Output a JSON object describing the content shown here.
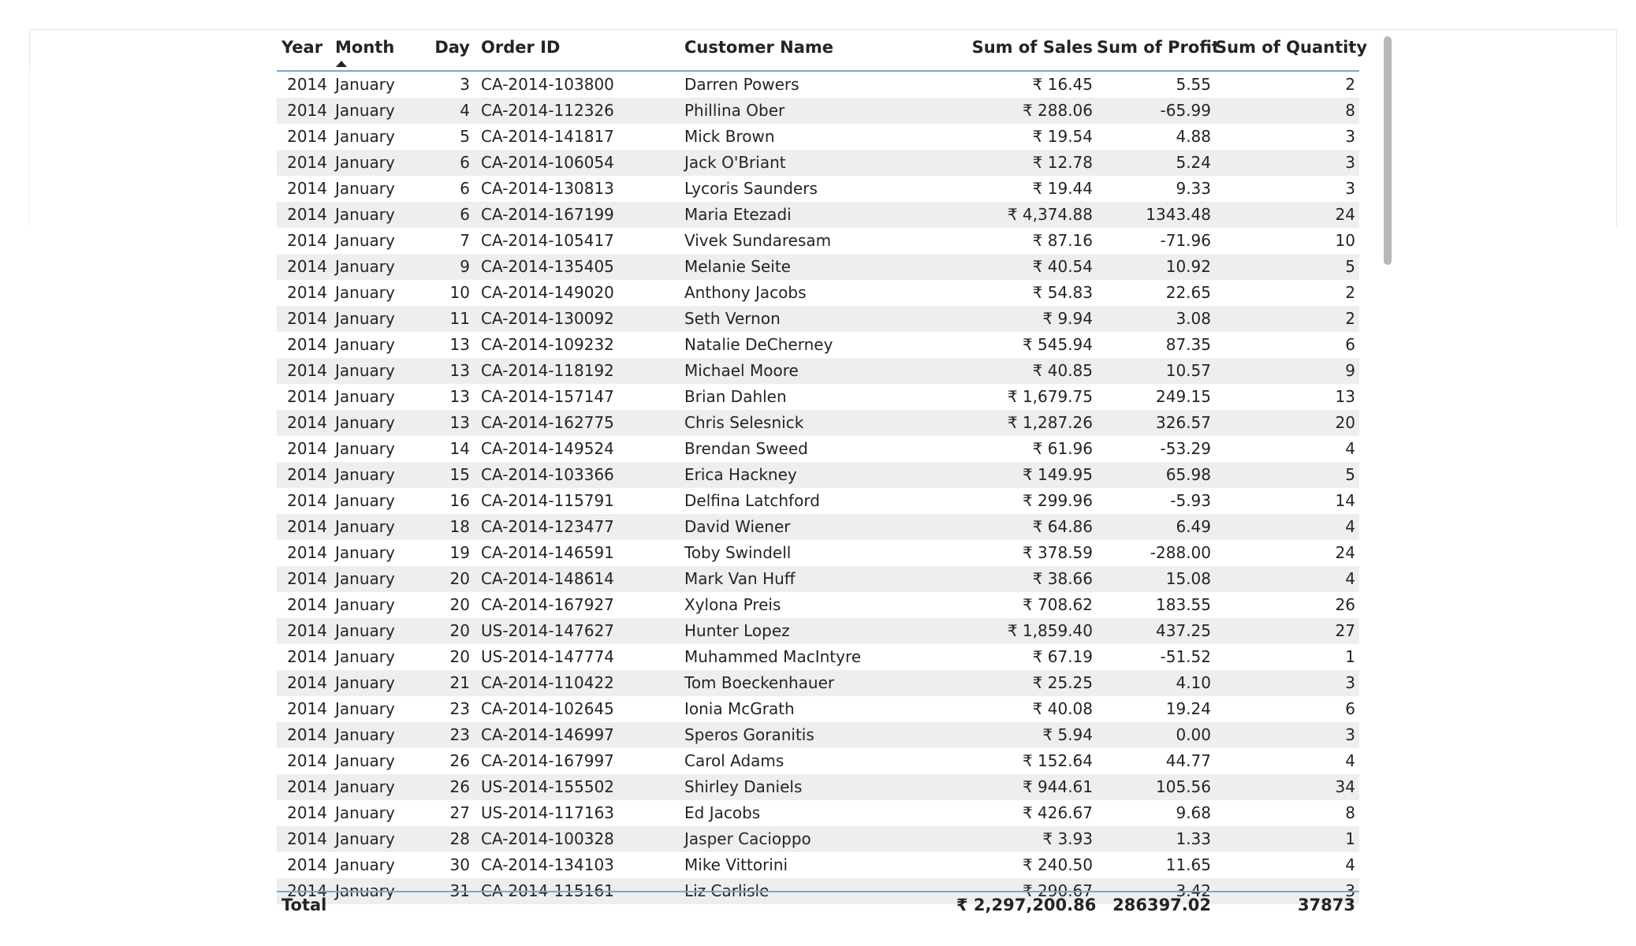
{
  "table": {
    "columns": {
      "year": "Year",
      "month": "Month",
      "day": "Day",
      "order_id": "Order ID",
      "customer_name": "Customer Name",
      "sum_sales": "Sum of Sales",
      "sum_profit": "Sum of Profit",
      "sum_quantity": "Sum of Quantity"
    },
    "sorted_column": "Month",
    "sort_direction": "ascending",
    "rows": [
      {
        "year": "2014",
        "month": "January",
        "day": "3",
        "order_id": "CA-2014-103800",
        "customer": "Darren Powers",
        "sales": "₹ 16.45",
        "profit": "5.55",
        "quantity": "2"
      },
      {
        "year": "2014",
        "month": "January",
        "day": "4",
        "order_id": "CA-2014-112326",
        "customer": "Phillina Ober",
        "sales": "₹ 288.06",
        "profit": "-65.99",
        "quantity": "8"
      },
      {
        "year": "2014",
        "month": "January",
        "day": "5",
        "order_id": "CA-2014-141817",
        "customer": "Mick Brown",
        "sales": "₹ 19.54",
        "profit": "4.88",
        "quantity": "3"
      },
      {
        "year": "2014",
        "month": "January",
        "day": "6",
        "order_id": "CA-2014-106054",
        "customer": "Jack O'Briant",
        "sales": "₹ 12.78",
        "profit": "5.24",
        "quantity": "3"
      },
      {
        "year": "2014",
        "month": "January",
        "day": "6",
        "order_id": "CA-2014-130813",
        "customer": "Lycoris Saunders",
        "sales": "₹ 19.44",
        "profit": "9.33",
        "quantity": "3"
      },
      {
        "year": "2014",
        "month": "January",
        "day": "6",
        "order_id": "CA-2014-167199",
        "customer": "Maria Etezadi",
        "sales": "₹ 4,374.88",
        "profit": "1343.48",
        "quantity": "24"
      },
      {
        "year": "2014",
        "month": "January",
        "day": "7",
        "order_id": "CA-2014-105417",
        "customer": "Vivek Sundaresam",
        "sales": "₹ 87.16",
        "profit": "-71.96",
        "quantity": "10"
      },
      {
        "year": "2014",
        "month": "January",
        "day": "9",
        "order_id": "CA-2014-135405",
        "customer": "Melanie Seite",
        "sales": "₹ 40.54",
        "profit": "10.92",
        "quantity": "5"
      },
      {
        "year": "2014",
        "month": "January",
        "day": "10",
        "order_id": "CA-2014-149020",
        "customer": "Anthony Jacobs",
        "sales": "₹ 54.83",
        "profit": "22.65",
        "quantity": "2"
      },
      {
        "year": "2014",
        "month": "January",
        "day": "11",
        "order_id": "CA-2014-130092",
        "customer": "Seth Vernon",
        "sales": "₹ 9.94",
        "profit": "3.08",
        "quantity": "2"
      },
      {
        "year": "2014",
        "month": "January",
        "day": "13",
        "order_id": "CA-2014-109232",
        "customer": "Natalie DeCherney",
        "sales": "₹ 545.94",
        "profit": "87.35",
        "quantity": "6"
      },
      {
        "year": "2014",
        "month": "January",
        "day": "13",
        "order_id": "CA-2014-118192",
        "customer": "Michael Moore",
        "sales": "₹ 40.85",
        "profit": "10.57",
        "quantity": "9"
      },
      {
        "year": "2014",
        "month": "January",
        "day": "13",
        "order_id": "CA-2014-157147",
        "customer": "Brian Dahlen",
        "sales": "₹ 1,679.75",
        "profit": "249.15",
        "quantity": "13"
      },
      {
        "year": "2014",
        "month": "January",
        "day": "13",
        "order_id": "CA-2014-162775",
        "customer": "Chris Selesnick",
        "sales": "₹ 1,287.26",
        "profit": "326.57",
        "quantity": "20"
      },
      {
        "year": "2014",
        "month": "January",
        "day": "14",
        "order_id": "CA-2014-149524",
        "customer": "Brendan Sweed",
        "sales": "₹ 61.96",
        "profit": "-53.29",
        "quantity": "4"
      },
      {
        "year": "2014",
        "month": "January",
        "day": "15",
        "order_id": "CA-2014-103366",
        "customer": "Erica Hackney",
        "sales": "₹ 149.95",
        "profit": "65.98",
        "quantity": "5"
      },
      {
        "year": "2014",
        "month": "January",
        "day": "16",
        "order_id": "CA-2014-115791",
        "customer": "Delfina Latchford",
        "sales": "₹ 299.96",
        "profit": "-5.93",
        "quantity": "14"
      },
      {
        "year": "2014",
        "month": "January",
        "day": "18",
        "order_id": "CA-2014-123477",
        "customer": "David Wiener",
        "sales": "₹ 64.86",
        "profit": "6.49",
        "quantity": "4"
      },
      {
        "year": "2014",
        "month": "January",
        "day": "19",
        "order_id": "CA-2014-146591",
        "customer": "Toby Swindell",
        "sales": "₹ 378.59",
        "profit": "-288.00",
        "quantity": "24"
      },
      {
        "year": "2014",
        "month": "January",
        "day": "20",
        "order_id": "CA-2014-148614",
        "customer": "Mark Van Huff",
        "sales": "₹ 38.66",
        "profit": "15.08",
        "quantity": "4"
      },
      {
        "year": "2014",
        "month": "January",
        "day": "20",
        "order_id": "CA-2014-167927",
        "customer": "Xylona Preis",
        "sales": "₹ 708.62",
        "profit": "183.55",
        "quantity": "26"
      },
      {
        "year": "2014",
        "month": "January",
        "day": "20",
        "order_id": "US-2014-147627",
        "customer": "Hunter Lopez",
        "sales": "₹ 1,859.40",
        "profit": "437.25",
        "quantity": "27"
      },
      {
        "year": "2014",
        "month": "January",
        "day": "20",
        "order_id": "US-2014-147774",
        "customer": "Muhammed MacIntyre",
        "sales": "₹ 67.19",
        "profit": "-51.52",
        "quantity": "1"
      },
      {
        "year": "2014",
        "month": "January",
        "day": "21",
        "order_id": "CA-2014-110422",
        "customer": "Tom Boeckenhauer",
        "sales": "₹ 25.25",
        "profit": "4.10",
        "quantity": "3"
      },
      {
        "year": "2014",
        "month": "January",
        "day": "23",
        "order_id": "CA-2014-102645",
        "customer": "Ionia McGrath",
        "sales": "₹ 40.08",
        "profit": "19.24",
        "quantity": "6"
      },
      {
        "year": "2014",
        "month": "January",
        "day": "23",
        "order_id": "CA-2014-146997",
        "customer": "Speros Goranitis",
        "sales": "₹ 5.94",
        "profit": "0.00",
        "quantity": "3"
      },
      {
        "year": "2014",
        "month": "January",
        "day": "26",
        "order_id": "CA-2014-167997",
        "customer": "Carol Adams",
        "sales": "₹ 152.64",
        "profit": "44.77",
        "quantity": "4"
      },
      {
        "year": "2014",
        "month": "January",
        "day": "26",
        "order_id": "US-2014-155502",
        "customer": "Shirley Daniels",
        "sales": "₹ 944.61",
        "profit": "105.56",
        "quantity": "34"
      },
      {
        "year": "2014",
        "month": "January",
        "day": "27",
        "order_id": "US-2014-117163",
        "customer": "Ed Jacobs",
        "sales": "₹ 426.67",
        "profit": "9.68",
        "quantity": "8"
      },
      {
        "year": "2014",
        "month": "January",
        "day": "28",
        "order_id": "CA-2014-100328",
        "customer": "Jasper Cacioppo",
        "sales": "₹ 3.93",
        "profit": "1.33",
        "quantity": "1"
      },
      {
        "year": "2014",
        "month": "January",
        "day": "30",
        "order_id": "CA-2014-134103",
        "customer": "Mike Vittorini",
        "sales": "₹ 240.50",
        "profit": "11.65",
        "quantity": "4"
      },
      {
        "year": "2014",
        "month": "January",
        "day": "31",
        "order_id": "CA-2014-115161",
        "customer": "Liz Carlisle",
        "sales": "₹ 290.67",
        "profit": "3.42",
        "quantity": "3"
      }
    ],
    "total": {
      "label": "Total",
      "sales": "₹ 2,297,200.86",
      "profit": "286397.02",
      "quantity": "37873"
    }
  }
}
